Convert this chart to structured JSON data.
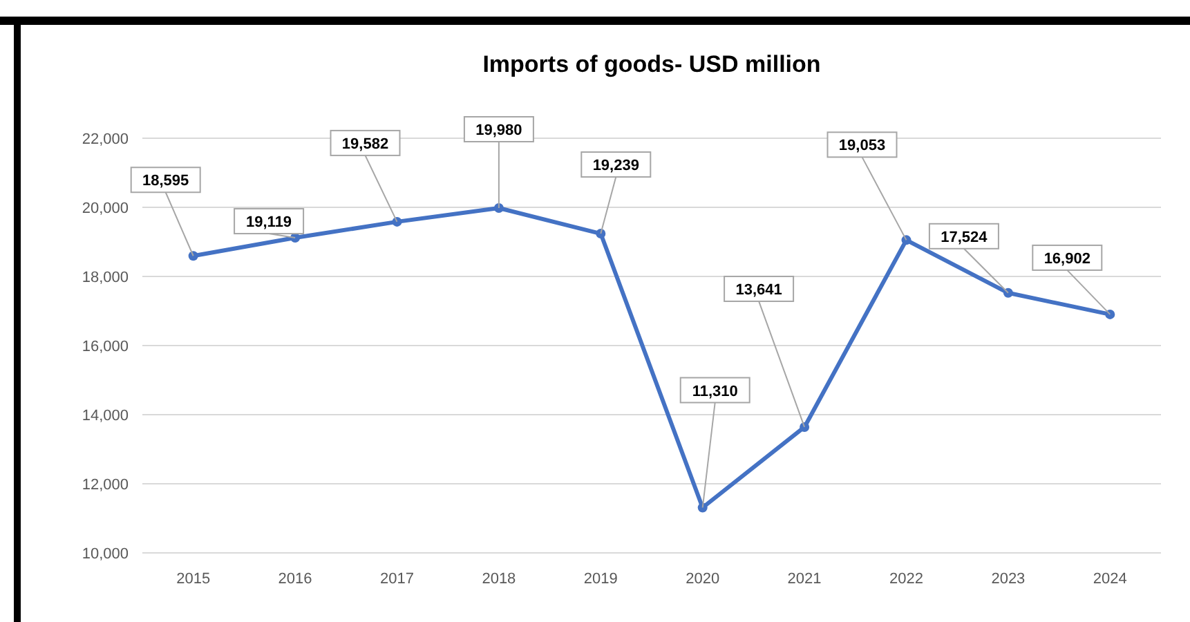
{
  "chart_data": {
    "type": "line",
    "title": "Imports of goods- USD million",
    "categories": [
      "2015",
      "2016",
      "2017",
      "2018",
      "2019",
      "2020",
      "2021",
      "2022",
      "2023",
      "2024"
    ],
    "series": [
      {
        "color": "#4472c4",
        "values": [
          18595,
          19119,
          19582,
          19980,
          19239,
          11310,
          13641,
          19053,
          17524,
          16902
        ],
        "value_labels": [
          "18,595",
          "19,119",
          "19,582",
          "19,980",
          "19,239",
          "11,310",
          "13,641",
          "19,053",
          "17,524",
          "16,902"
        ]
      }
    ],
    "ylim": [
      10000,
      22000
    ],
    "yticks": [
      {
        "value": 10000,
        "label": "10,000"
      },
      {
        "value": 12000,
        "label": "12,000"
      },
      {
        "value": 14000,
        "label": "14,000"
      },
      {
        "value": 16000,
        "label": "16,000"
      },
      {
        "value": 18000,
        "label": "18,000"
      },
      {
        "value": 20000,
        "label": "20,000"
      },
      {
        "value": 22000,
        "label": "22,000"
      }
    ],
    "grid": "y",
    "marker": "circle",
    "line_style": "solid"
  }
}
